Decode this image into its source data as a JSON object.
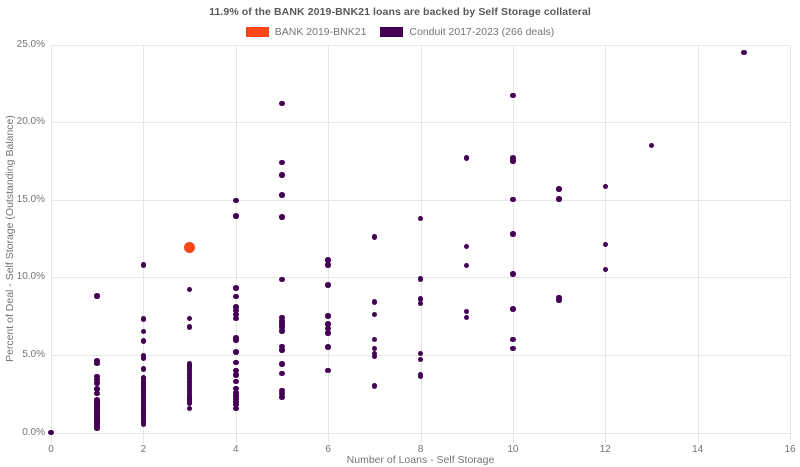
{
  "colors": {
    "background": "#ffffff",
    "grid": "#e6e6e6",
    "title_text": "#595959",
    "axis_text": "#757575",
    "bank_orange": "#fa4616",
    "conduit_purple": "#440154"
  },
  "chart_data": {
    "type": "scatter",
    "title": "11.9% of the BANK 2019-BNK21 loans are backed by Self Storage collateral",
    "xlabel": "Number of Loans - Self Storage",
    "ylabel": "Percent of Deal - Self Storage (Outstanding Balance)",
    "xlim": [
      0,
      16
    ],
    "ylim": [
      0,
      25
    ],
    "grid": true,
    "legend_position": "top",
    "xticks": [
      {
        "label": "0",
        "value": 0
      },
      {
        "label": "2",
        "value": 2
      },
      {
        "label": "4",
        "value": 4
      },
      {
        "label": "6",
        "value": 6
      },
      {
        "label": "8",
        "value": 8
      },
      {
        "label": "10",
        "value": 10
      },
      {
        "label": "12",
        "value": 12
      },
      {
        "label": "14",
        "value": 14
      },
      {
        "label": "16",
        "value": 16
      }
    ],
    "yticks": [
      {
        "label": "0.0%",
        "value": 0
      },
      {
        "label": "5.0%",
        "value": 5
      },
      {
        "label": "10.0%",
        "value": 10
      },
      {
        "label": "15.0%",
        "value": 15
      },
      {
        "label": "20.0%",
        "value": 20
      },
      {
        "label": "25.0%",
        "value": 25
      }
    ],
    "series": [
      {
        "name": "BANK 2019-BNK21",
        "color": "#fa4616",
        "marker_size": 11,
        "points": [
          [
            3,
            11.9
          ]
        ]
      },
      {
        "name": "Conduit 2017-2023 (266 deals)",
        "color": "#440154",
        "marker_size": 5.5,
        "points": [
          [
            0,
            0
          ],
          [
            1,
            8.8
          ],
          [
            1,
            4.6
          ],
          [
            1,
            4.45
          ],
          [
            1,
            3.6
          ],
          [
            1,
            3.4
          ],
          [
            1,
            3.2
          ],
          [
            1,
            2.8
          ],
          [
            1,
            2.5
          ],
          [
            1,
            2.1
          ],
          [
            1,
            2.0
          ],
          [
            1,
            1.9
          ],
          [
            1,
            1.8
          ],
          [
            1,
            1.7
          ],
          [
            1,
            1.6
          ],
          [
            1,
            1.5
          ],
          [
            1,
            1.4
          ],
          [
            1,
            1.3
          ],
          [
            1,
            1.2
          ],
          [
            1,
            1.1
          ],
          [
            1,
            1.0
          ],
          [
            1,
            0.9
          ],
          [
            1,
            0.8
          ],
          [
            1,
            0.7
          ],
          [
            1,
            0.6
          ],
          [
            1,
            0.5
          ],
          [
            1,
            0.4
          ],
          [
            1,
            0.3
          ],
          [
            2,
            10.8
          ],
          [
            2,
            7.3
          ],
          [
            2,
            6.5
          ],
          [
            2,
            5.9
          ],
          [
            2,
            4.95
          ],
          [
            2,
            4.8
          ],
          [
            2,
            4.1
          ],
          [
            2,
            3.5
          ],
          [
            2,
            3.4
          ],
          [
            2,
            3.3
          ],
          [
            2,
            3.2
          ],
          [
            2,
            3.1
          ],
          [
            2,
            3.0
          ],
          [
            2,
            2.9
          ],
          [
            2,
            2.8
          ],
          [
            2,
            2.7
          ],
          [
            2,
            2.6
          ],
          [
            2,
            2.5
          ],
          [
            2,
            2.4
          ],
          [
            2,
            2.3
          ],
          [
            2,
            2.2
          ],
          [
            2,
            2.1
          ],
          [
            2,
            2.0
          ],
          [
            2,
            1.9
          ],
          [
            2,
            1.7
          ],
          [
            2,
            1.6
          ],
          [
            2,
            1.5
          ],
          [
            2,
            1.4
          ],
          [
            2,
            1.3
          ],
          [
            2,
            1.2
          ],
          [
            2,
            1.1
          ],
          [
            2,
            1.0
          ],
          [
            2,
            0.9
          ],
          [
            2,
            0.8
          ],
          [
            2,
            0.6
          ],
          [
            2,
            0.5
          ],
          [
            3,
            9.2
          ],
          [
            3,
            7.35
          ],
          [
            3,
            6.8
          ],
          [
            3,
            4.4
          ],
          [
            3,
            4.3
          ],
          [
            3,
            4.15
          ],
          [
            3,
            4.0
          ],
          [
            3,
            3.85
          ],
          [
            3,
            3.7
          ],
          [
            3,
            3.55
          ],
          [
            3,
            3.4
          ],
          [
            3,
            3.25
          ],
          [
            3,
            3.1
          ],
          [
            3,
            2.95
          ],
          [
            3,
            2.8
          ],
          [
            3,
            2.65
          ],
          [
            3,
            2.5
          ],
          [
            3,
            2.4
          ],
          [
            3,
            2.3
          ],
          [
            3,
            2.2
          ],
          [
            3,
            2.1
          ],
          [
            3,
            2.0
          ],
          [
            3,
            1.9
          ],
          [
            3,
            1.55
          ],
          [
            4,
            14.95
          ],
          [
            4,
            13.95
          ],
          [
            4,
            9.3
          ],
          [
            4,
            8.75
          ],
          [
            4,
            8.1
          ],
          [
            4,
            7.85
          ],
          [
            4,
            7.6
          ],
          [
            4,
            7.35
          ],
          [
            4,
            6.1
          ],
          [
            4,
            5.95
          ],
          [
            4,
            5.2
          ],
          [
            4,
            4.5
          ],
          [
            4,
            4.0
          ],
          [
            4,
            3.7
          ],
          [
            4,
            3.3
          ],
          [
            4,
            2.85
          ],
          [
            4,
            2.55
          ],
          [
            4,
            2.35
          ],
          [
            4,
            2.15
          ],
          [
            4,
            1.95
          ],
          [
            4,
            1.8
          ],
          [
            4,
            1.55
          ],
          [
            5,
            21.2
          ],
          [
            5,
            17.4
          ],
          [
            5,
            16.6
          ],
          [
            5,
            15.3
          ],
          [
            5,
            13.9
          ],
          [
            5,
            9.85
          ],
          [
            5,
            7.4
          ],
          [
            5,
            7.2
          ],
          [
            5,
            7.0
          ],
          [
            5,
            6.8
          ],
          [
            5,
            6.55
          ],
          [
            5,
            5.55
          ],
          [
            5,
            5.3
          ],
          [
            5,
            4.4
          ],
          [
            5,
            3.8
          ],
          [
            5,
            2.7
          ],
          [
            5,
            2.5
          ],
          [
            5,
            2.3
          ],
          [
            6,
            11.1
          ],
          [
            6,
            10.8
          ],
          [
            6,
            9.5
          ],
          [
            6,
            7.5
          ],
          [
            6,
            7.0
          ],
          [
            6,
            6.7
          ],
          [
            6,
            6.4
          ],
          [
            6,
            5.5
          ],
          [
            6,
            4.0
          ],
          [
            7,
            12.6
          ],
          [
            7,
            8.4
          ],
          [
            7,
            7.6
          ],
          [
            7,
            6.0
          ],
          [
            7,
            5.4
          ],
          [
            7,
            5.1
          ],
          [
            7,
            4.9
          ],
          [
            7,
            3.0
          ],
          [
            8,
            13.8
          ],
          [
            8,
            9.9
          ],
          [
            8,
            8.6
          ],
          [
            8,
            8.3
          ],
          [
            8,
            5.1
          ],
          [
            8,
            4.7
          ],
          [
            8,
            3.75
          ],
          [
            8,
            3.6
          ],
          [
            9,
            17.7
          ],
          [
            9,
            12.0
          ],
          [
            9,
            10.75
          ],
          [
            9,
            7.8
          ],
          [
            9,
            7.4
          ],
          [
            10,
            21.7
          ],
          [
            10,
            17.7
          ],
          [
            10,
            17.5
          ],
          [
            10,
            15.0
          ],
          [
            10,
            12.8
          ],
          [
            10,
            10.2
          ],
          [
            10,
            7.95
          ],
          [
            10,
            6.0
          ],
          [
            10,
            5.4
          ],
          [
            11,
            15.7
          ],
          [
            11,
            15.05
          ],
          [
            11,
            8.7
          ],
          [
            11,
            8.55
          ],
          [
            12,
            15.85
          ],
          [
            12,
            12.1
          ],
          [
            12,
            10.5
          ],
          [
            13,
            18.5
          ],
          [
            15,
            24.5
          ]
        ]
      }
    ]
  }
}
